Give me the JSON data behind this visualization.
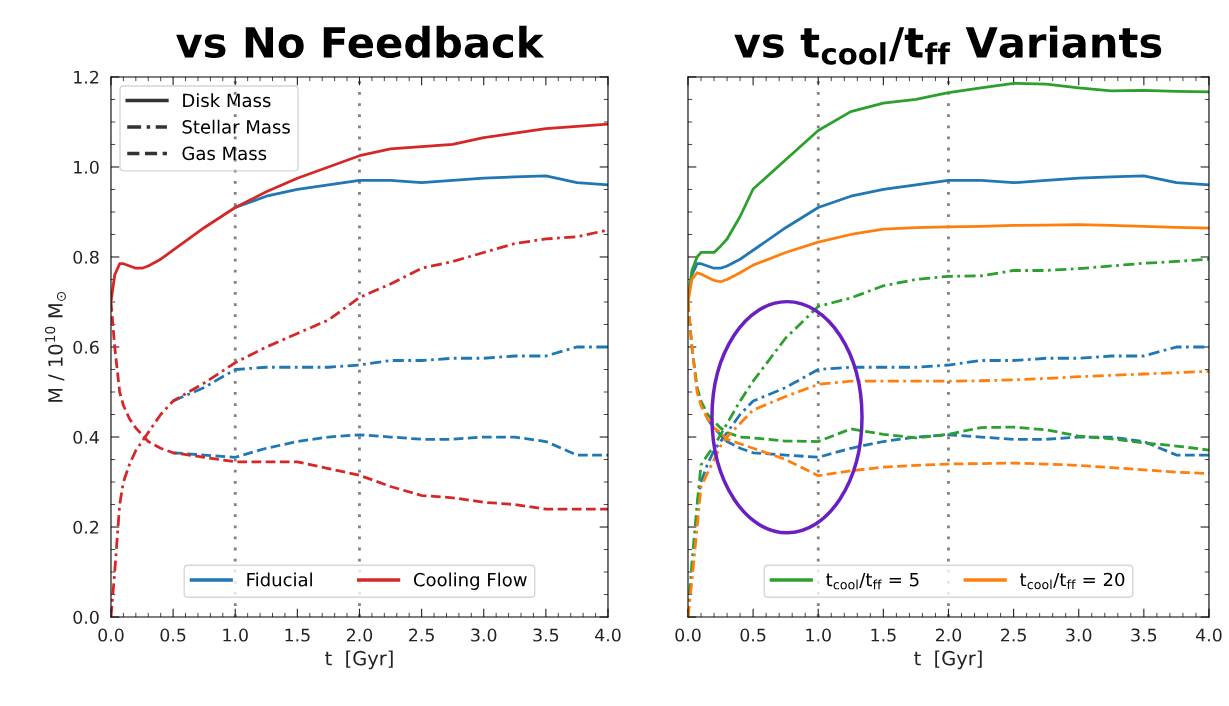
{
  "chart_data": [
    {
      "type": "line",
      "title": "vs No Feedback",
      "xlabel": "t  [Gyr]",
      "ylabel": "M / 10$^{10}$ M$_{⊙}$",
      "xlim": [
        0,
        4
      ],
      "ylim": [
        0,
        1.2
      ],
      "xticks": [
        {
          "value": 0,
          "label": "0.0"
        },
        0.5,
        {
          "value": 1,
          "label": "1.0"
        },
        1.5,
        {
          "value": 2,
          "label": "2.0"
        },
        2.5,
        {
          "value": 3,
          "label": "3.0"
        },
        3.5,
        {
          "value": 4,
          "label": "4.0"
        }
      ],
      "yticks": [
        {
          "value": 0,
          "label": "0.0"
        },
        0.2,
        0.4,
        0.6,
        0.8,
        {
          "value": 1,
          "label": "1.0"
        },
        1.2
      ],
      "grid": false,
      "legend": "bottom",
      "annotations": [
        "Disk Mass",
        "Stellar Mass",
        "Gas Mass"
      ],
      "ref_lines": [
        {
          "axis": "x",
          "value": 1,
          "color": "#808080",
          "line_style": "dotted"
        },
        {
          "axis": "x",
          "value": 2,
          "color": "#808080",
          "line_style": "dotted"
        }
      ],
      "x": [
        0,
        0.03,
        0.07,
        0.1,
        0.15,
        0.2,
        0.25,
        0.3,
        0.4,
        0.5,
        0.75,
        1.0,
        1.25,
        1.5,
        1.75,
        2.0,
        2.25,
        2.5,
        2.75,
        3.0,
        3.25,
        3.5,
        3.75,
        4.0
      ],
      "series": [
        {
          "name": "Fiducial",
          "color": "#1f77b4",
          "line_style": "solid",
          "values": [
            null,
            null,
            null,
            null,
            null,
            null,
            null,
            null,
            null,
            null,
            null,
            0.91,
            0.935,
            0.95,
            0.96,
            0.97,
            0.97,
            0.965,
            0.97,
            0.975,
            0.978,
            0.98,
            0.965,
            0.96
          ]
        },
        {
          "color": "#1f77b4",
          "line_style": "dashdot",
          "values": [
            null,
            null,
            null,
            null,
            null,
            null,
            null,
            null,
            null,
            0.48,
            0.51,
            0.55,
            0.555,
            0.555,
            0.555,
            0.56,
            0.57,
            0.57,
            0.575,
            0.575,
            0.58,
            0.58,
            0.6,
            0.6
          ]
        },
        {
          "color": "#1f77b4",
          "line_style": "dashed",
          "values": [
            null,
            null,
            null,
            null,
            null,
            null,
            null,
            null,
            null,
            0.365,
            0.36,
            0.355,
            0.375,
            0.39,
            0.4,
            0.405,
            0.4,
            0.395,
            0.395,
            0.4,
            0.4,
            0.39,
            0.36,
            0.36
          ]
        },
        {
          "name": "Cooling Flow",
          "color": "#d62728",
          "line_style": "solid",
          "values": [
            0.7,
            0.76,
            0.785,
            0.785,
            0.78,
            0.775,
            0.775,
            0.78,
            0.795,
            0.815,
            0.865,
            0.91,
            0.945,
            0.975,
            1.0,
            1.025,
            1.04,
            1.045,
            1.05,
            1.065,
            1.075,
            1.085,
            1.09,
            1.095
          ]
        },
        {
          "color": "#d62728",
          "line_style": "dashdot",
          "values": [
            0,
            0.1,
            0.25,
            0.3,
            0.34,
            0.37,
            0.39,
            0.41,
            0.45,
            0.48,
            0.52,
            0.565,
            0.6,
            0.63,
            0.66,
            0.71,
            0.74,
            0.775,
            0.79,
            0.81,
            0.83,
            0.84,
            0.845,
            0.86
          ]
        },
        {
          "color": "#d62728",
          "line_style": "dashed",
          "values": [
            0.7,
            0.6,
            0.5,
            0.47,
            0.44,
            0.42,
            0.405,
            0.39,
            0.375,
            0.365,
            0.355,
            0.345,
            0.345,
            0.345,
            0.33,
            0.315,
            0.29,
            0.27,
            0.265,
            0.255,
            0.25,
            0.24,
            0.24,
            0.24
          ]
        }
      ]
    },
    {
      "type": "line",
      "title": "vs t$_{cool}$/t$_{ff}$ Variants",
      "xlabel": "t  [Gyr]",
      "xlim": [
        0,
        4
      ],
      "ylim": [
        0,
        1.2
      ],
      "xticks": [
        {
          "value": 0,
          "label": "0.0"
        },
        0.5,
        {
          "value": 1,
          "label": "1.0"
        },
        1.5,
        {
          "value": 2,
          "label": "2.0"
        },
        2.5,
        {
          "value": 3,
          "label": "3.0"
        },
        3.5,
        {
          "value": 4,
          "label": "4.0"
        }
      ],
      "yticks": [
        0,
        0.2,
        0.4,
        0.6,
        0.8,
        1,
        1.2
      ],
      "tick_labels": "x",
      "grid": false,
      "legend": "bottom",
      "ref_lines": [
        {
          "axis": "x",
          "value": 1,
          "color": "#808080",
          "line_style": "dotted"
        },
        {
          "axis": "x",
          "value": 2,
          "color": "#808080",
          "line_style": "dotted"
        }
      ],
      "x": [
        0,
        0.03,
        0.07,
        0.1,
        0.15,
        0.2,
        0.25,
        0.3,
        0.4,
        0.5,
        0.75,
        1.0,
        1.25,
        1.5,
        1.75,
        2.0,
        2.25,
        2.5,
        2.75,
        3.0,
        3.25,
        3.5,
        3.75,
        4.0
      ],
      "series": [
        {
          "color": "#1f77b4",
          "line_style": "solid",
          "values": [
            null,
            0.76,
            0.785,
            0.785,
            0.78,
            0.775,
            0.775,
            0.78,
            0.795,
            0.815,
            0.865,
            0.91,
            0.935,
            0.95,
            0.96,
            0.97,
            0.97,
            0.965,
            0.97,
            0.975,
            0.978,
            0.98,
            0.965,
            0.96
          ]
        },
        {
          "color": "#1f77b4",
          "line_style": "dashdot",
          "values": [
            null,
            null,
            0.25,
            0.3,
            0.34,
            0.37,
            0.39,
            0.41,
            0.45,
            0.48,
            0.51,
            0.55,
            0.555,
            0.555,
            0.555,
            0.56,
            0.57,
            0.57,
            0.575,
            0.575,
            0.58,
            0.58,
            0.6,
            0.6
          ]
        },
        {
          "color": "#1f77b4",
          "line_style": "dashed",
          "values": [
            null,
            null,
            null,
            null,
            0.44,
            0.42,
            0.405,
            0.39,
            0.375,
            0.365,
            0.36,
            0.355,
            0.375,
            0.39,
            0.4,
            0.405,
            0.4,
            0.395,
            0.395,
            0.4,
            0.4,
            0.39,
            0.36,
            0.36
          ]
        },
        {
          "name": "t$_{cool}$/t$_{ff}$ = 5",
          "color": "#2ca02c",
          "line_style": "solid",
          "values": [
            0.7,
            0.77,
            0.8,
            0.81,
            0.81,
            0.81,
            0.824,
            0.84,
            0.89,
            0.951,
            1.016,
            1.081,
            1.123,
            1.142,
            1.15,
            1.165,
            1.176,
            1.186,
            1.184,
            1.176,
            1.169,
            1.17,
            1.168,
            1.167
          ]
        },
        {
          "color": "#2ca02c",
          "line_style": "dashdot",
          "values": [
            0,
            0.12,
            0.25,
            0.338,
            0.36,
            0.38,
            0.405,
            0.43,
            0.48,
            0.524,
            0.62,
            0.69,
            0.709,
            0.736,
            0.75,
            0.757,
            0.758,
            0.77,
            0.77,
            0.774,
            0.78,
            0.786,
            0.79,
            0.795
          ]
        },
        {
          "color": "#2ca02c",
          "line_style": "dashed",
          "values": [
            0.7,
            0.6,
            0.51,
            0.48,
            0.45,
            0.435,
            0.42,
            0.41,
            0.4,
            0.398,
            0.391,
            0.39,
            0.418,
            0.406,
            0.398,
            0.406,
            0.421,
            0.422,
            0.416,
            0.402,
            0.396,
            0.387,
            0.38,
            0.371
          ]
        },
        {
          "name": "t$_{cool}$/t$_{ff}$ = 20",
          "color": "#ff7f0e",
          "line_style": "solid",
          "values": [
            0.7,
            0.75,
            0.765,
            0.762,
            0.755,
            0.748,
            0.745,
            0.75,
            0.765,
            0.782,
            0.81,
            0.833,
            0.85,
            0.862,
            0.865,
            0.867,
            0.868,
            0.87,
            0.871,
            0.872,
            0.87,
            0.868,
            0.866,
            0.864
          ]
        },
        {
          "color": "#ff7f0e",
          "line_style": "dashdot",
          "values": [
            0,
            0.08,
            0.2,
            0.29,
            0.32,
            0.35,
            0.38,
            0.4,
            0.43,
            0.46,
            0.49,
            0.517,
            0.524,
            0.524,
            0.524,
            0.524,
            0.525,
            0.527,
            0.53,
            0.534,
            0.537,
            0.54,
            0.543,
            0.546
          ]
        },
        {
          "color": "#ff7f0e",
          "line_style": "dashed",
          "values": [
            0.7,
            0.6,
            0.5,
            0.47,
            0.44,
            0.42,
            0.41,
            0.395,
            0.385,
            0.375,
            0.35,
            0.314,
            0.325,
            0.333,
            0.337,
            0.34,
            0.341,
            0.342,
            0.34,
            0.337,
            0.332,
            0.327,
            0.322,
            0.319
          ]
        }
      ]
    }
  ]
}
